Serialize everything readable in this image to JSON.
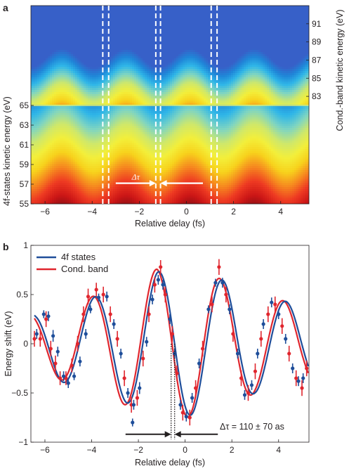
{
  "panel_a": {
    "letter": "a",
    "xlabel": "Relative delay (fs)",
    "ylabel_left": "4f-states kinetic energy (eV)",
    "ylabel_right": "Cond.-band kinetic energy (eV)",
    "delta_label": "Δτ"
  },
  "panel_b": {
    "letter": "b",
    "xlabel": "Relative delay (fs)",
    "ylabel": "Energy shift (eV)",
    "annotation": "Δτ = 110 ± 70 as"
  },
  "colors": {
    "four_f": "#1f4e9a",
    "cond_band": "#e0262e",
    "dashed_lines": "#ffffff"
  },
  "chart_data": [
    {
      "type": "heatmap",
      "xlabel": "Relative delay (fs)",
      "ylabel": "4f-states kinetic energy (eV)",
      "xlim": [
        -6.6,
        5.2
      ],
      "x_ticks": [
        "−6",
        "−4",
        "−2",
        "0",
        "2",
        "4"
      ],
      "lower_band": {
        "ylim": [
          55,
          65
        ],
        "y_ticks": [
          "55",
          "57",
          "59",
          "61",
          "63",
          "65"
        ]
      },
      "upper_band": {
        "ylabel": "Cond.-band kinetic energy (eV)",
        "ylim": [
          82,
          93
        ],
        "y_ticks": [
          "83",
          "85",
          "87",
          "89",
          "91"
        ]
      },
      "dashed_lines_x": [
        -3.55,
        -3.3,
        -1.3,
        -1.1,
        1.05,
        1.3
      ],
      "arrows": {
        "label": "Δτ",
        "left_from": -3.0,
        "left_to": -1.3,
        "right_from": 0.7,
        "right_to": -1.1
      },
      "colormap": [
        "#7a0c12",
        "#cc1616",
        "#ee3a22",
        "#f6881f",
        "#f7d21c",
        "#f3ef3a",
        "#cfe86a",
        "#7fd5c1",
        "#2fb6e8",
        "#1f86d8",
        "#3760c8"
      ]
    },
    {
      "type": "line",
      "xlabel": "Relative delay (fs)",
      "ylabel": "Energy shift (eV)",
      "xlim": [
        -6.6,
        5.3
      ],
      "ylim": [
        -1,
        1
      ],
      "x_ticks": [
        "−6",
        "−4",
        "−2",
        "0",
        "2",
        "4"
      ],
      "y_ticks": [
        "−1",
        "−0.5",
        "0",
        "0.5",
        "1"
      ],
      "legend_position": "top-left",
      "fit_model": {
        "period_fs": 2.72,
        "four_f_phase_zero_fs": -0.45,
        "cond_band_phase_zero_fs": -0.56
      },
      "series": [
        {
          "name": "4f states",
          "key": "four_f",
          "color": "#1f4e9a",
          "fit_envelope": [
            [
              -6.4,
              0.3
            ],
            [
              -5.4,
              0.38
            ],
            [
              -3.5,
              0.5
            ],
            [
              -2.3,
              0.62
            ],
            [
              -1.2,
              0.73
            ],
            [
              -0.3,
              0.75
            ],
            [
              0.8,
              0.7
            ],
            [
              2.0,
              0.62
            ],
            [
              3.0,
              0.5
            ],
            [
              4.0,
              0.45
            ],
            [
              5.1,
              0.38
            ]
          ],
          "points": [
            {
              "x": -6.35,
              "y": 0.1,
              "err": 0.05
            },
            {
              "x": -6.05,
              "y": 0.3,
              "err": 0.04
            },
            {
              "x": -5.85,
              "y": 0.28,
              "err": 0.05
            },
            {
              "x": -5.65,
              "y": 0.08,
              "err": 0.06
            },
            {
              "x": -5.45,
              "y": -0.08,
              "err": 0.05
            },
            {
              "x": -5.2,
              "y": -0.33,
              "err": 0.05
            },
            {
              "x": -5.0,
              "y": -0.4,
              "err": 0.05
            },
            {
              "x": -4.75,
              "y": -0.33,
              "err": 0.04
            },
            {
              "x": -4.5,
              "y": -0.18,
              "err": 0.05
            },
            {
              "x": -4.25,
              "y": 0.1,
              "err": 0.05
            },
            {
              "x": -4.05,
              "y": 0.35,
              "err": 0.04
            },
            {
              "x": -3.7,
              "y": 0.47,
              "err": 0.04
            },
            {
              "x": -3.35,
              "y": 0.48,
              "err": 0.05
            },
            {
              "x": -3.05,
              "y": 0.2,
              "err": 0.05
            },
            {
              "x": -2.75,
              "y": -0.1,
              "err": 0.05
            },
            {
              "x": -2.45,
              "y": -0.5,
              "err": 0.05
            },
            {
              "x": -2.2,
              "y": -0.62,
              "err": 0.05
            },
            {
              "x": -1.95,
              "y": -0.45,
              "err": 0.06
            },
            {
              "x": -1.65,
              "y": 0.02,
              "err": 0.05
            },
            {
              "x": -1.4,
              "y": 0.45,
              "err": 0.05
            },
            {
              "x": -1.15,
              "y": 0.65,
              "err": 0.05
            },
            {
              "x": -0.95,
              "y": 0.6,
              "err": 0.05
            },
            {
              "x": -0.65,
              "y": 0.25,
              "err": 0.05
            },
            {
              "x": -0.45,
              "y": -0.1,
              "err": 0.05
            },
            {
              "x": -0.2,
              "y": -0.62,
              "err": 0.05
            },
            {
              "x": 0.05,
              "y": -0.74,
              "err": 0.05
            },
            {
              "x": 0.3,
              "y": -0.55,
              "err": 0.05
            },
            {
              "x": 0.6,
              "y": -0.2,
              "err": 0.05
            },
            {
              "x": 1.0,
              "y": 0.35,
              "err": 0.04
            },
            {
              "x": 1.3,
              "y": 0.62,
              "err": 0.04
            },
            {
              "x": 1.6,
              "y": 0.62,
              "err": 0.05
            },
            {
              "x": 1.9,
              "y": 0.35,
              "err": 0.05
            },
            {
              "x": 2.25,
              "y": -0.1,
              "err": 0.05
            },
            {
              "x": 2.55,
              "y": -0.52,
              "err": 0.05
            },
            {
              "x": 2.85,
              "y": -0.42,
              "err": 0.05
            },
            {
              "x": 3.1,
              "y": -0.1,
              "err": 0.05
            },
            {
              "x": 3.35,
              "y": 0.2,
              "err": 0.05
            },
            {
              "x": 3.7,
              "y": 0.42,
              "err": 0.05
            },
            {
              "x": 4.0,
              "y": 0.3,
              "err": 0.05
            },
            {
              "x": 4.3,
              "y": 0.05,
              "err": 0.05
            },
            {
              "x": 4.6,
              "y": -0.25,
              "err": 0.05
            },
            {
              "x": 4.85,
              "y": -0.38,
              "err": 0.05
            },
            {
              "x": 5.05,
              "y": -0.35,
              "err": 0.05
            },
            {
              "x": -2.25,
              "y": -0.8,
              "err": 0.04
            }
          ]
        },
        {
          "name": "Cond. band",
          "key": "cond_band",
          "color": "#e0262e",
          "fit_envelope": [
            [
              -6.4,
              0.3
            ],
            [
              -5.4,
              0.36
            ],
            [
              -3.5,
              0.52
            ],
            [
              -2.3,
              0.65
            ],
            [
              -1.2,
              0.76
            ],
            [
              -0.3,
              0.76
            ],
            [
              0.8,
              0.72
            ],
            [
              2.0,
              0.62
            ],
            [
              3.0,
              0.5
            ],
            [
              4.0,
              0.45
            ],
            [
              5.1,
              0.38
            ]
          ],
          "points": [
            {
              "x": -6.45,
              "y": 0.05,
              "err": 0.08
            },
            {
              "x": -6.2,
              "y": 0.05,
              "err": 0.08
            },
            {
              "x": -5.95,
              "y": 0.25,
              "err": 0.08
            },
            {
              "x": -5.75,
              "y": -0.05,
              "err": 0.08
            },
            {
              "x": -5.55,
              "y": -0.2,
              "err": 0.08
            },
            {
              "x": -5.35,
              "y": -0.35,
              "err": 0.07
            },
            {
              "x": -5.1,
              "y": -0.35,
              "err": 0.07
            },
            {
              "x": -4.85,
              "y": -0.22,
              "err": 0.07
            },
            {
              "x": -4.6,
              "y": 0.0,
              "err": 0.08
            },
            {
              "x": -4.35,
              "y": 0.3,
              "err": 0.08
            },
            {
              "x": -4.15,
              "y": 0.48,
              "err": 0.08
            },
            {
              "x": -3.8,
              "y": 0.55,
              "err": 0.07
            },
            {
              "x": -3.5,
              "y": 0.5,
              "err": 0.08
            },
            {
              "x": -3.2,
              "y": 0.3,
              "err": 0.08
            },
            {
              "x": -2.9,
              "y": 0.05,
              "err": 0.08
            },
            {
              "x": -2.6,
              "y": -0.35,
              "err": 0.08
            },
            {
              "x": -2.3,
              "y": -0.62,
              "err": 0.08
            },
            {
              "x": -2.05,
              "y": -0.55,
              "err": 0.08
            },
            {
              "x": -1.8,
              "y": -0.15,
              "err": 0.08
            },
            {
              "x": -1.55,
              "y": 0.3,
              "err": 0.08
            },
            {
              "x": -1.3,
              "y": 0.6,
              "err": 0.08
            },
            {
              "x": -1.05,
              "y": 0.78,
              "err": 0.07
            },
            {
              "x": -0.85,
              "y": 0.5,
              "err": 0.08
            },
            {
              "x": -0.55,
              "y": 0.1,
              "err": 0.08
            },
            {
              "x": -0.35,
              "y": -0.3,
              "err": 0.08
            },
            {
              "x": -0.1,
              "y": -0.7,
              "err": 0.08
            },
            {
              "x": 0.2,
              "y": -0.75,
              "err": 0.08
            },
            {
              "x": 0.45,
              "y": -0.45,
              "err": 0.08
            },
            {
              "x": 0.75,
              "y": -0.05,
              "err": 0.08
            },
            {
              "x": 1.15,
              "y": 0.4,
              "err": 0.08
            },
            {
              "x": 1.45,
              "y": 0.78,
              "err": 0.08
            },
            {
              "x": 1.75,
              "y": 0.5,
              "err": 0.08
            },
            {
              "x": 2.05,
              "y": 0.1,
              "err": 0.08
            },
            {
              "x": 2.4,
              "y": -0.35,
              "err": 0.08
            },
            {
              "x": 2.7,
              "y": -0.5,
              "err": 0.08
            },
            {
              "x": 3.0,
              "y": -0.28,
              "err": 0.08
            },
            {
              "x": 3.25,
              "y": 0.05,
              "err": 0.08
            },
            {
              "x": 3.55,
              "y": 0.3,
              "err": 0.08
            },
            {
              "x": 3.85,
              "y": 0.4,
              "err": 0.08
            },
            {
              "x": 4.15,
              "y": 0.18,
              "err": 0.08
            },
            {
              "x": 4.45,
              "y": -0.1,
              "err": 0.08
            },
            {
              "x": 4.75,
              "y": -0.35,
              "err": 0.08
            },
            {
              "x": 5.0,
              "y": -0.45,
              "err": 0.08
            },
            {
              "x": 5.2,
              "y": -0.25,
              "err": 0.08
            }
          ]
        }
      ],
      "delay_marker_x": [
        -0.6,
        -0.45
      ],
      "arrow_annotation": {
        "text": "Δτ = 110 ± 70 as",
        "left_arrow_tail": -2.55,
        "right_arrow_tail": 1.4
      }
    }
  ]
}
